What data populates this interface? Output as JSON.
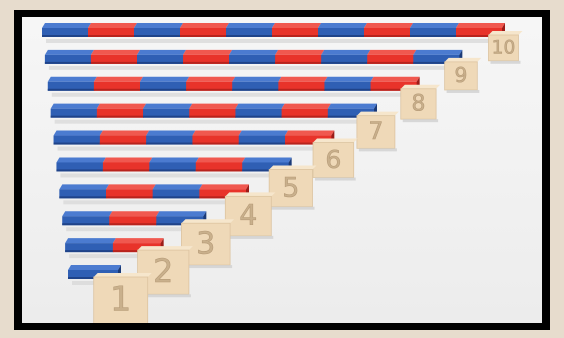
{
  "image": {
    "subject": "number-rods",
    "colors": {
      "red": "#e8332a",
      "blue": "#2f5fb4",
      "wood": "#efd9b8",
      "background": "#f2f2f2",
      "frame": "#000000"
    }
  },
  "tiles": [
    "1",
    "2",
    "3",
    "4",
    "5",
    "6",
    "7",
    "8",
    "9",
    "10"
  ],
  "rods": [
    {
      "segments": 1
    },
    {
      "segments": 2
    },
    {
      "segments": 3
    },
    {
      "segments": 4
    },
    {
      "segments": 5
    },
    {
      "segments": 6
    },
    {
      "segments": 7
    },
    {
      "segments": 8
    },
    {
      "segments": 9
    },
    {
      "segments": 10
    }
  ]
}
